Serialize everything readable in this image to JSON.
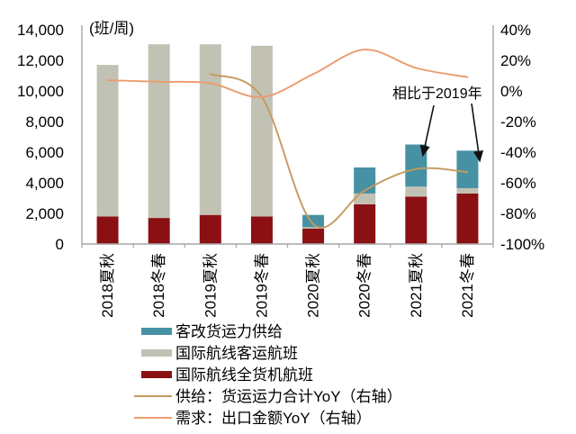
{
  "chart_data": {
    "type": "bar",
    "subtype": "stacked-bar-with-lines",
    "unit_label": "(班/周)",
    "categories": [
      "2018夏秋",
      "2018冬春",
      "2019夏秋",
      "2019冬春",
      "2020夏秋",
      "2020冬春",
      "2021夏秋",
      "2021冬春"
    ],
    "left_axis": {
      "min": 0,
      "max": 14000,
      "step": 2000,
      "tick_labels": [
        "14,000",
        "12,000",
        "10,000",
        "8,000",
        "6,000",
        "4,000",
        "2,000",
        "0"
      ]
    },
    "right_axis": {
      "min": -100,
      "max": 40,
      "step": 20,
      "tick_labels": [
        "40%",
        "20%",
        "0%",
        "-20%",
        "-40%",
        "-60%",
        "-80%",
        "-100%"
      ]
    },
    "bar_series": [
      {
        "name": "国际航线全货机航班",
        "color": "#8B1014",
        "axis": "left",
        "values": [
          1800,
          1700,
          1900,
          1800,
          1000,
          2600,
          3100,
          3300
        ]
      },
      {
        "name": "国际航线客运航班",
        "color": "#C2C2B4",
        "axis": "left",
        "values": [
          9900,
          11350,
          11150,
          11150,
          100,
          700,
          650,
          350
        ]
      },
      {
        "name": "客改货运力供给",
        "color": "#4691A4",
        "axis": "left",
        "values": [
          0,
          0,
          0,
          0,
          800,
          1700,
          2750,
          2450
        ]
      }
    ],
    "line_series": [
      {
        "name": "供给：货运运力合计YoY（右轴）",
        "color": "#C49A5F",
        "axis": "right",
        "values": [
          null,
          null,
          11,
          -4,
          -87,
          -65,
          -51,
          -53
        ]
      },
      {
        "name": "需求：出口金额YoY（右轴）",
        "color": "#EA9C6F",
        "axis": "right",
        "values": [
          7,
          6,
          5,
          -4,
          11,
          27,
          15,
          9
        ]
      }
    ],
    "legend": [
      {
        "type": "rect",
        "color": "#4691A4",
        "label": "客改货运力供给"
      },
      {
        "type": "rect",
        "color": "#C2C2B4",
        "label": "国际航线客运航班"
      },
      {
        "type": "rect",
        "color": "#8B1014",
        "label": "国际航线全货机航班"
      },
      {
        "type": "line",
        "color": "#C49A5F",
        "label": "供给：货运运力合计YoY（右轴）"
      },
      {
        "type": "line",
        "color": "#EA9C6F",
        "label": "需求：出口金额YoY（右轴）"
      }
    ],
    "annotation": {
      "text": "相比于2019年"
    },
    "grid": false,
    "legend_position": "bottom-left",
    "axis_color": "#A6A6A6",
    "text_color": "#000000",
    "background": "#FFFFFF"
  }
}
